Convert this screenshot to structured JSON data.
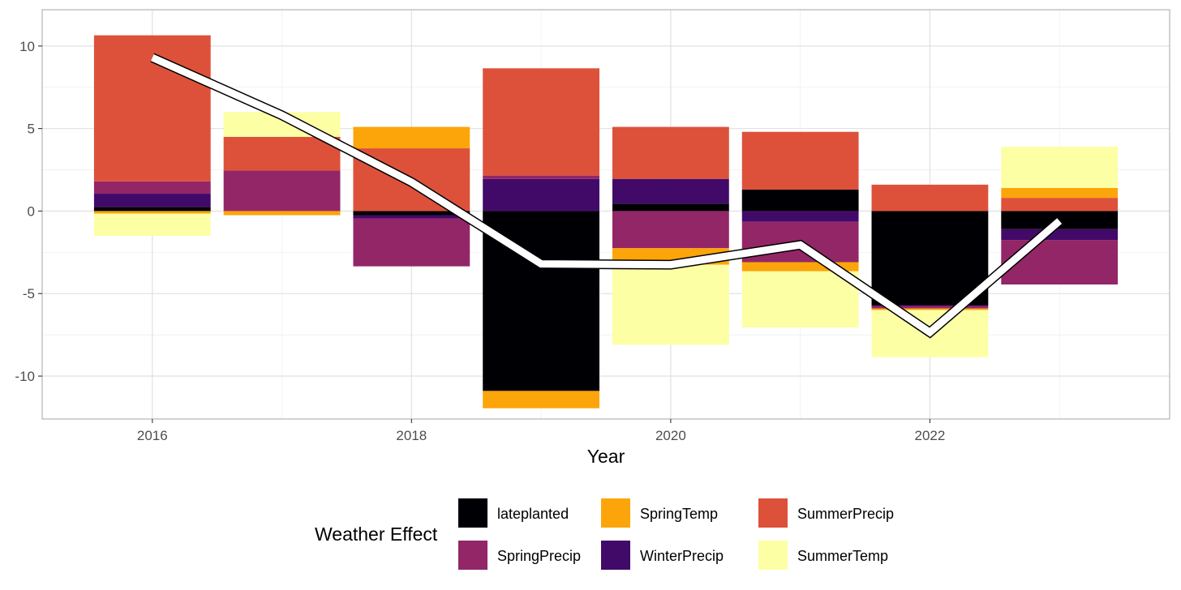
{
  "chart_data": {
    "type": "bar",
    "stacked": true,
    "title": "",
    "xlabel": "Year",
    "ylabel": "",
    "x": [
      2016,
      2017,
      2018,
      2019,
      2020,
      2021,
      2022,
      2023
    ],
    "xlim": [
      2015.15,
      2023.85
    ],
    "ylim": [
      -12.6,
      12.2
    ],
    "x_ticks": [
      2016,
      2018,
      2020,
      2022
    ],
    "x_tick_labels": [
      "2016",
      "2018",
      "2020",
      "2022"
    ],
    "y_ticks": [
      -10,
      -5,
      0,
      5,
      10
    ],
    "y_tick_labels": [
      "-10",
      "-5",
      "0",
      "5",
      "10"
    ],
    "grid": true,
    "legend": {
      "title": "Weather Effect",
      "position": "bottom",
      "entries": [
        {
          "name": "lateplanted",
          "color": "#000004"
        },
        {
          "name": "SpringPrecip",
          "color": "#932667"
        },
        {
          "name": "SpringTemp",
          "color": "#FCA50A"
        },
        {
          "name": "WinterPrecip",
          "color": "#420A68"
        },
        {
          "name": "SummerPrecip",
          "color": "#DD513A"
        },
        {
          "name": "SummerTemp",
          "color": "#FCFFA4"
        }
      ]
    },
    "series": [
      {
        "name": "lateplanted",
        "color": "#000004",
        "values": [
          0.25,
          0,
          -0.25,
          -10.9,
          0.45,
          1.3,
          -5.7,
          -1.1
        ]
      },
      {
        "name": "WinterPrecip",
        "color": "#420A68",
        "values": [
          0.8,
          0,
          -0.2,
          1.95,
          1.5,
          -0.65,
          -0.05,
          -0.65
        ]
      },
      {
        "name": "SpringPrecip",
        "color": "#932667",
        "values": [
          0.75,
          2.45,
          -2.9,
          0.2,
          -2.25,
          -2.45,
          -0.15,
          -2.7
        ]
      },
      {
        "name": "SummerPrecip",
        "color": "#DD513A",
        "values": [
          8.85,
          2.05,
          3.8,
          6.5,
          3.15,
          3.5,
          1.6,
          0.8
        ]
      },
      {
        "name": "SpringTemp",
        "color": "#FCA50A",
        "values": [
          -0.15,
          -0.25,
          1.3,
          -1.05,
          -1.0,
          -0.55,
          -0.1,
          0.6
        ]
      },
      {
        "name": "SummerTemp",
        "color": "#FCFFA4",
        "values": [
          -1.35,
          1.5,
          0,
          0,
          -4.85,
          -3.4,
          -2.85,
          2.5
        ]
      }
    ],
    "net_line": {
      "values": [
        9.3,
        5.8,
        1.75,
        -3.2,
        -3.25,
        -2.05,
        -7.35,
        -0.6
      ],
      "color": "#ffffff",
      "outline": "#000000"
    }
  }
}
